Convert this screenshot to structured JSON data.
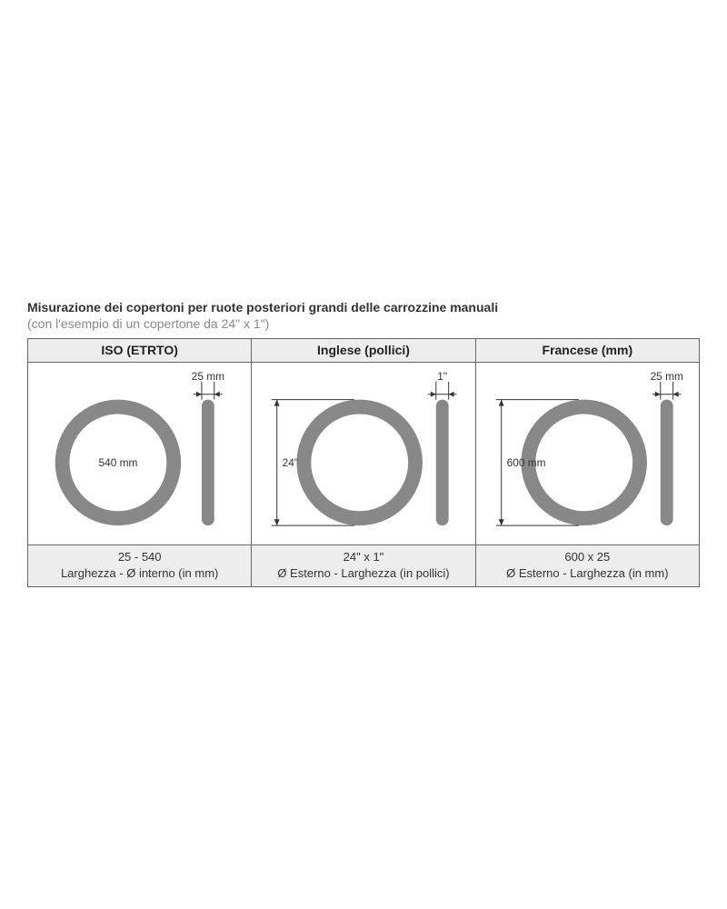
{
  "title": "Misurazione dei copertoni per ruote posteriori grandi delle carrozzine manuali",
  "subtitle": "(con l'esempio di un copertone da 24\" x 1\")",
  "colors": {
    "ring": "#888888",
    "dim_line": "#333333",
    "text": "#333333",
    "header_bg": "#ededed",
    "border": "#666666",
    "page_bg": "#ffffff"
  },
  "ring_stroke_width": 16,
  "panels": [
    {
      "header": "ISO (ETRTO)",
      "footer_line1": "25 - 540",
      "footer_line2": "Larghezza - Ø interno (in mm)",
      "diameter_label": "540 mm",
      "width_label": "25 mm",
      "measure_mode": "inner"
    },
    {
      "header": "Inglese (pollici)",
      "footer_line1": "24\" x 1\"",
      "footer_line2": "Ø Esterno - Larghezza (in pollici)",
      "diameter_label": "24\"",
      "width_label": "1\"",
      "measure_mode": "outer"
    },
    {
      "header": "Francese (mm)",
      "footer_line1": "600 x 25",
      "footer_line2": "Ø Esterno - Larghezza (in mm)",
      "diameter_label": "600 mm",
      "width_label": "25 mm",
      "measure_mode": "outer"
    }
  ]
}
